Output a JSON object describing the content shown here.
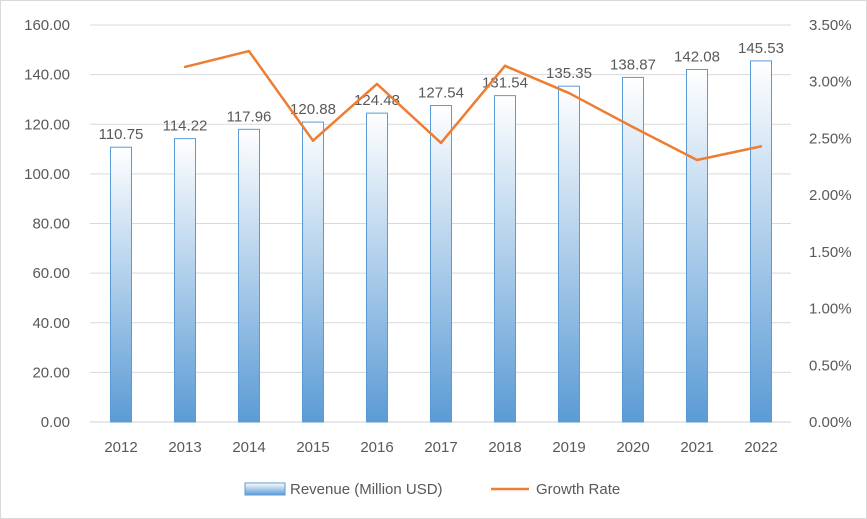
{
  "chart_data": {
    "type": "bar",
    "title": "",
    "categories": [
      "2012",
      "2013",
      "2014",
      "2015",
      "2016",
      "2017",
      "2018",
      "2019",
      "2020",
      "2021",
      "2022"
    ],
    "series": [
      {
        "name": "Revenue (Million USD)",
        "type": "bar",
        "axis": "left",
        "values": [
          110.75,
          114.22,
          117.96,
          120.88,
          124.48,
          127.54,
          131.54,
          135.35,
          138.87,
          142.08,
          145.53
        ],
        "labels": [
          "110.75",
          "114.22",
          "117.96",
          "120.88",
          "124.48",
          "127.54",
          "131.54",
          "135.35",
          "138.87",
          "142.08",
          "145.53"
        ]
      },
      {
        "name": "Growth Rate",
        "type": "line",
        "axis": "right",
        "values": [
          null,
          3.13,
          3.27,
          2.48,
          2.98,
          2.46,
          3.14,
          2.9,
          2.6,
          2.31,
          2.43
        ]
      }
    ],
    "y_left": {
      "range": [
        0,
        160
      ],
      "ticks": [
        "0.00",
        "20.00",
        "40.00",
        "60.00",
        "80.00",
        "100.00",
        "120.00",
        "140.00",
        "160.00"
      ]
    },
    "y_right": {
      "range": [
        0,
        3.5
      ],
      "ticks": [
        "0.00%",
        "0.50%",
        "1.00%",
        "1.50%",
        "2.00%",
        "2.50%",
        "3.00%",
        "3.50%"
      ]
    },
    "grid": true,
    "legend": "bottom",
    "colors": {
      "bar_top": "#ffffff",
      "bar_bottom": "#5b9bd5",
      "bar_border": "#5b9bd5",
      "line": "#ed7d31",
      "grid": "#d9d9d9"
    }
  }
}
